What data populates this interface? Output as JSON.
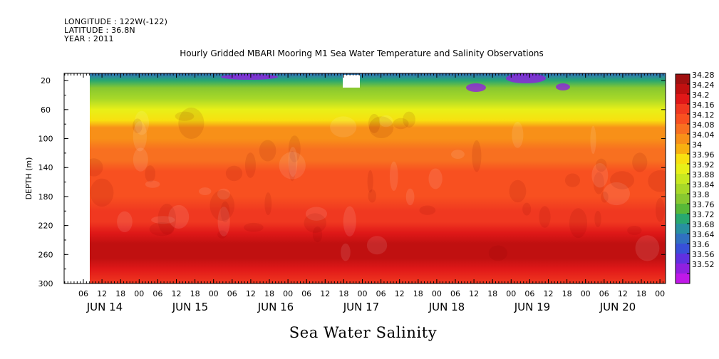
{
  "header": {
    "longitude": "LONGITUDE : 122W(-122)",
    "latitude": "LATITUDE : 36.8N",
    "year": "YEAR : 2011"
  },
  "chart_data": {
    "type": "heatmap",
    "title": "Hourly Gridded MBARI Mooring M1 Sea Water Temperature and Salinity Observations",
    "xlabel": "Sea Water Salinity",
    "ylabel": "DEPTH (m)",
    "y_axis": {
      "min": 10,
      "max": 300,
      "inverted": true,
      "ticks": [
        20,
        60,
        100,
        140,
        180,
        220,
        260,
        300
      ]
    },
    "x_axis": {
      "hour_ticks": [
        "06",
        "12",
        "18",
        "00",
        "06",
        "12",
        "18",
        "00",
        "06",
        "12",
        "18",
        "00",
        "06",
        "12",
        "18",
        "00",
        "06",
        "12",
        "18",
        "00",
        "06",
        "12",
        "18",
        "00",
        "06",
        "12",
        "18",
        "00",
        "06",
        "12",
        "18",
        "00"
      ],
      "date_labels": [
        "JUN 14",
        "JUN 15",
        "JUN 16",
        "JUN 17",
        "JUN 18",
        "JUN 19",
        "JUN 20"
      ]
    },
    "colorbar": {
      "levels": [
        "34.28",
        "34.24",
        "34.2",
        "34.16",
        "34.12",
        "34.08",
        "34.04",
        "34",
        "33.96",
        "33.92",
        "33.88",
        "33.84",
        "33.8",
        "33.76",
        "33.72",
        "33.68",
        "33.64",
        "33.6",
        "33.56",
        "33.52"
      ],
      "colors": [
        "#a01010",
        "#c01010",
        "#e01818",
        "#f03820",
        "#f85020",
        "#f87020",
        "#f89018",
        "#f8b010",
        "#f8e010",
        "#e8f018",
        "#c8e820",
        "#a8d828",
        "#88c830",
        "#58b838",
        "#28a870",
        "#2890a0",
        "#3070c0",
        "#3850d8",
        "#6030e0",
        "#9020e0",
        "#c018e8"
      ]
    },
    "depth_profile": [
      {
        "depth": 10,
        "value": 33.66
      },
      {
        "depth": 20,
        "value": 33.72
      },
      {
        "depth": 30,
        "value": 33.8
      },
      {
        "depth": 45,
        "value": 33.86
      },
      {
        "depth": 60,
        "value": 33.92
      },
      {
        "depth": 75,
        "value": 33.99
      },
      {
        "depth": 85,
        "value": 34.04
      },
      {
        "depth": 100,
        "value": 34.05
      },
      {
        "depth": 115,
        "value": 34.08
      },
      {
        "depth": 130,
        "value": 34.11
      },
      {
        "depth": 145,
        "value": 34.14
      },
      {
        "depth": 160,
        "value": 34.15
      },
      {
        "depth": 180,
        "value": 34.15
      },
      {
        "depth": 200,
        "value": 34.16
      },
      {
        "depth": 215,
        "value": 34.18
      },
      {
        "depth": 230,
        "value": 34.21
      },
      {
        "depth": 245,
        "value": 34.25
      },
      {
        "depth": 255,
        "value": 34.26
      },
      {
        "depth": 265,
        "value": 34.25
      },
      {
        "depth": 280,
        "value": 34.2
      },
      {
        "depth": 300,
        "value": 34.18
      }
    ],
    "grid": false
  }
}
